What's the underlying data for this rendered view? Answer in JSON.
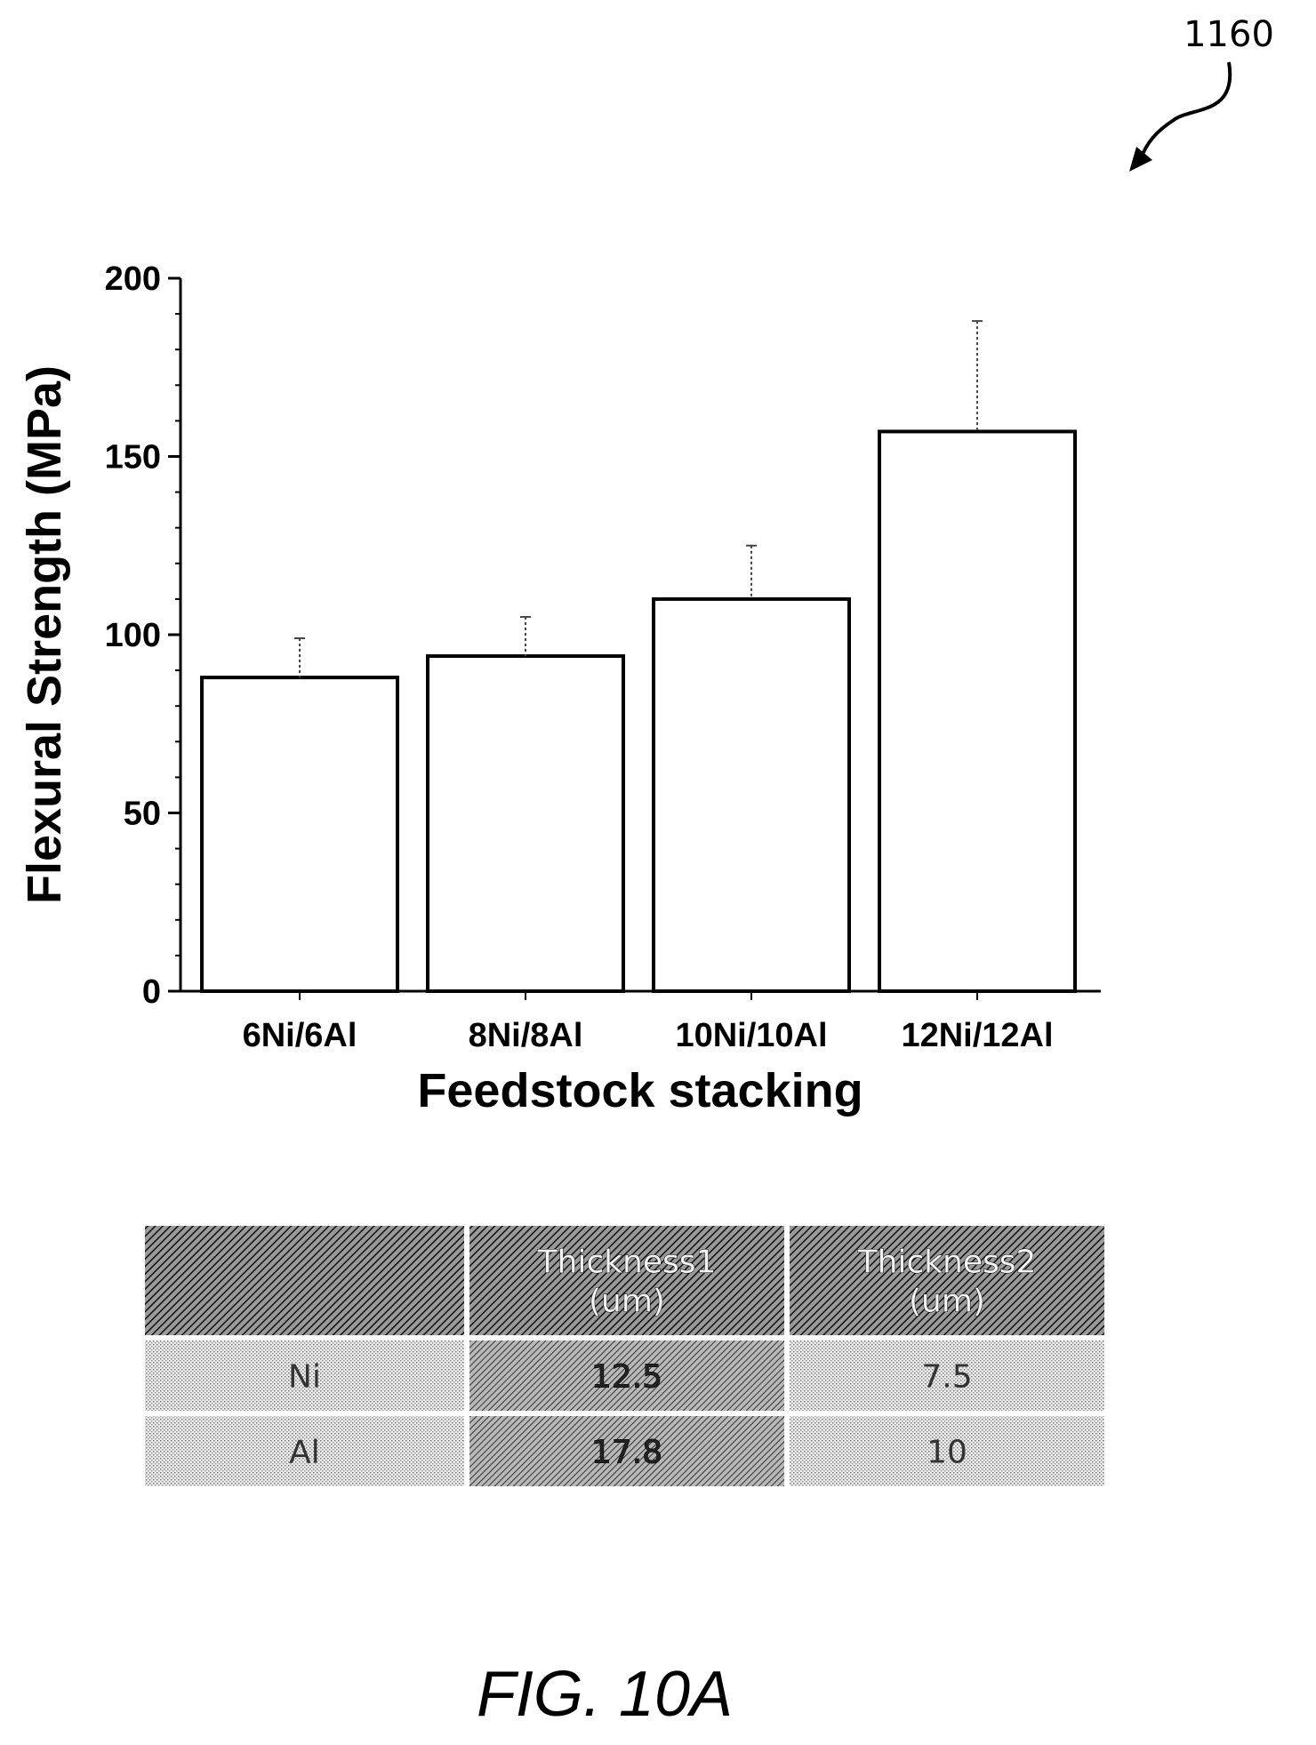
{
  "figure": {
    "reference_number": "1160",
    "caption": "FIG. 10A"
  },
  "chart_data": {
    "type": "bar",
    "title": "",
    "xlabel": "Feedstock  stacking",
    "ylabel": "Flexural Strength (MPa)",
    "ylim": [
      0,
      200
    ],
    "yticks": [
      0,
      50,
      100,
      150,
      200
    ],
    "categories": [
      "6Ni/6Al",
      "8Ni/8Al",
      "10Ni/10Al",
      "12Ni/12Al"
    ],
    "values": [
      88,
      94,
      110,
      157
    ],
    "error_upper": [
      99,
      105,
      125,
      188
    ],
    "grid": false,
    "legend": "none"
  },
  "table": {
    "headers": [
      "",
      "Thickness1\n(um)",
      "Thickness2\n(um)"
    ],
    "rows": [
      [
        "Ni",
        "12.5",
        "7.5"
      ],
      [
        "Al",
        "17.8",
        "10"
      ]
    ]
  }
}
